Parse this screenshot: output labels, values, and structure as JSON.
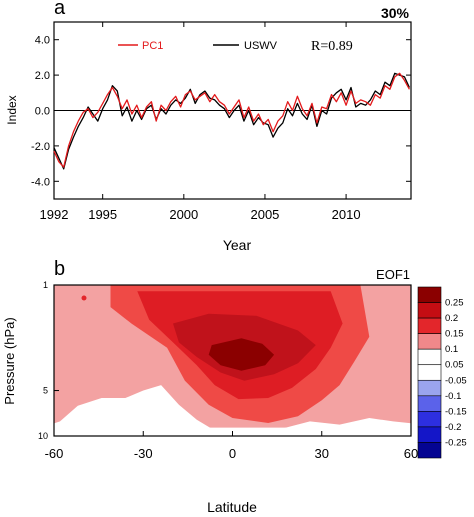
{
  "panel_a": {
    "label": "a",
    "percent": "30%",
    "legend_r": "R=0.89"
  },
  "panel_b": {
    "label": "b",
    "eof_label": "EOF1"
  },
  "chart_data": [
    {
      "type": "line",
      "xlabel": "Year",
      "ylabel": "Index",
      "xlim": [
        1992,
        2014
      ],
      "ylim": [
        -5,
        5
      ],
      "xticks": [
        1992,
        1995,
        2000,
        2005,
        2010
      ],
      "xtick_labels": [
        "1992",
        "1995",
        "2000",
        "2005",
        "2010"
      ],
      "yticks": [
        4,
        2,
        0,
        -2,
        -4
      ],
      "ytick_labels": [
        "4.0",
        "2.0",
        "0.0",
        "-2.0",
        "-4.0"
      ],
      "reference_line_y": 0,
      "legend_placement": "top-center",
      "series": [
        {
          "name": "PC1",
          "color": "#e31a1c",
          "x": [
            1992.0,
            1992.3,
            1992.6,
            1992.9,
            1993.2,
            1993.5,
            1993.8,
            1994.1,
            1994.4,
            1994.7,
            1995.0,
            1995.3,
            1995.6,
            1995.9,
            1996.2,
            1996.5,
            1996.8,
            1997.1,
            1997.4,
            1997.7,
            1998.0,
            1998.3,
            1998.6,
            1998.9,
            1999.2,
            1999.5,
            1999.8,
            2000.1,
            2000.4,
            2000.7,
            2001.0,
            2001.3,
            2001.6,
            2001.9,
            2002.2,
            2002.5,
            2002.8,
            2003.1,
            2003.4,
            2003.7,
            2004.0,
            2004.3,
            2004.6,
            2004.9,
            2005.2,
            2005.5,
            2005.8,
            2006.1,
            2006.4,
            2006.7,
            2007.0,
            2007.3,
            2007.6,
            2007.9,
            2008.2,
            2008.5,
            2008.8,
            2009.1,
            2009.4,
            2009.7,
            2010.0,
            2010.3,
            2010.6,
            2010.9,
            2011.2,
            2011.5,
            2011.8,
            2012.1,
            2012.4,
            2012.7,
            2013.0,
            2013.3,
            2013.6,
            2013.9
          ],
          "values": [
            -2.3,
            -2.9,
            -3.2,
            -2.0,
            -1.2,
            -0.6,
            -0.1,
            0.1,
            -0.4,
            -0.1,
            0.4,
            0.9,
            1.3,
            0.8,
            0.1,
            0.6,
            -0.2,
            0.3,
            -0.4,
            0.2,
            0.5,
            -0.6,
            0.3,
            0.0,
            0.5,
            0.8,
            0.2,
            0.9,
            1.1,
            0.6,
            0.8,
            1.0,
            0.5,
            0.9,
            0.5,
            0.3,
            -0.2,
            0.2,
            0.6,
            -0.4,
            0.2,
            -0.6,
            -0.2,
            -0.8,
            -0.5,
            -1.2,
            -0.6,
            -0.3,
            0.5,
            0.0,
            0.8,
            0.1,
            -0.3,
            0.4,
            -0.7,
            0.2,
            0.1,
            0.9,
            0.5,
            1.0,
            0.3,
            1.1,
            0.4,
            0.6,
            0.5,
            0.3,
            0.9,
            0.7,
            1.4,
            1.2,
            1.9,
            2.1,
            1.7,
            1.2
          ]
        },
        {
          "name": "USWV",
          "color": "#000000",
          "x": [
            1992.0,
            1992.3,
            1992.6,
            1992.9,
            1993.2,
            1993.5,
            1993.8,
            1994.1,
            1994.4,
            1994.7,
            1995.0,
            1995.3,
            1995.6,
            1995.9,
            1996.2,
            1996.5,
            1996.8,
            1997.1,
            1997.4,
            1997.7,
            1998.0,
            1998.3,
            1998.6,
            1998.9,
            1999.2,
            1999.5,
            1999.8,
            2000.1,
            2000.4,
            2000.7,
            2001.0,
            2001.3,
            2001.6,
            2001.9,
            2002.2,
            2002.5,
            2002.8,
            2003.1,
            2003.4,
            2003.7,
            2004.0,
            2004.3,
            2004.6,
            2004.9,
            2005.2,
            2005.5,
            2005.8,
            2006.1,
            2006.4,
            2006.7,
            2007.0,
            2007.3,
            2007.6,
            2007.9,
            2008.2,
            2008.5,
            2008.8,
            2009.1,
            2009.4,
            2009.7,
            2010.0,
            2010.3,
            2010.6,
            2010.9,
            2011.2,
            2011.5,
            2011.8,
            2012.1,
            2012.4,
            2012.7,
            2013.0,
            2013.3,
            2013.6,
            2013.9
          ],
          "values": [
            -2.1,
            -2.7,
            -3.3,
            -2.2,
            -1.5,
            -0.9,
            -0.4,
            0.2,
            -0.2,
            -0.6,
            0.1,
            0.6,
            1.4,
            1.1,
            -0.3,
            0.2,
            -0.6,
            0.0,
            -0.5,
            0.1,
            0.3,
            -0.5,
            0.1,
            -0.2,
            0.3,
            0.6,
            0.4,
            0.7,
            1.2,
            0.4,
            0.9,
            1.1,
            0.7,
            0.6,
            0.3,
            0.1,
            -0.4,
            0.0,
            0.3,
            -0.6,
            0.0,
            -0.8,
            -0.4,
            -0.7,
            -0.8,
            -1.5,
            -1.0,
            -0.7,
            0.1,
            -0.3,
            0.4,
            -0.2,
            -0.5,
            0.3,
            -0.9,
            0.0,
            -0.2,
            0.7,
            1.0,
            1.2,
            0.6,
            1.3,
            0.2,
            0.4,
            0.3,
            0.6,
            1.1,
            0.9,
            1.6,
            1.4,
            2.1,
            2.0,
            1.9,
            1.3
          ]
        }
      ]
    },
    {
      "type": "heatmap",
      "xlabel": "Latitude",
      "ylabel": "Pressure (hPa)",
      "xlim": [
        -60,
        60
      ],
      "xticks": [
        -60,
        -30,
        0,
        30,
        60
      ],
      "xtick_labels": [
        "-60",
        "-30",
        "0",
        "30",
        "60"
      ],
      "y_scale": "log-pressure",
      "yticks": [
        1,
        5,
        10
      ],
      "ytick_labels": [
        "1",
        "5",
        "10"
      ],
      "colorbar": {
        "placement": "right",
        "levels": [
          0.25,
          0.2,
          0.15,
          0.1,
          0.05,
          -0.05,
          -0.1,
          -0.15,
          -0.2,
          -0.25
        ],
        "labels": [
          "0.25",
          "0.2",
          "0.15",
          "0.1",
          "0.05",
          "-0.05",
          "-0.1",
          "-0.15",
          "-0.2",
          "-0.25"
        ],
        "colors": [
          "#8b0000",
          "#c40d13",
          "#e3262b",
          "#f0888a",
          "#ffffff",
          "#ffffff",
          "#9aa4ee",
          "#5b62ea",
          "#2d2fe0",
          "#1416c8",
          "#040492"
        ]
      },
      "contours": [
        {
          "level": 0.1,
          "color": "#f3a2a2",
          "points": [
            [
              -62,
              1
            ],
            [
              62,
              1
            ],
            [
              62,
              8.8
            ],
            [
              -62,
              8.8
            ]
          ]
        },
        {
          "level": 0.15,
          "color": "#ef4a46",
          "points": [
            [
              -41,
              1
            ],
            [
              43,
              1
            ],
            [
              46,
              2.2
            ],
            [
              41,
              3.2
            ],
            [
              36,
              4.6
            ],
            [
              30,
              5.8
            ],
            [
              22,
              7.4
            ],
            [
              12,
              8.2
            ],
            [
              0,
              7.6
            ],
            [
              -8,
              6.2
            ],
            [
              -16,
              4.3
            ],
            [
              -22,
              2.6
            ],
            [
              -34,
              1.8
            ],
            [
              -41,
              1.4
            ]
          ]
        },
        {
          "level": 0.2,
          "color": "#de1d24",
          "points": [
            [
              -32,
              1.1
            ],
            [
              33,
              1.1
            ],
            [
              37,
              1.8
            ],
            [
              33,
              2.6
            ],
            [
              28,
              3.6
            ],
            [
              20,
              4.8
            ],
            [
              12,
              5.6
            ],
            [
              2,
              5.7
            ],
            [
              -6,
              4.6
            ],
            [
              -12,
              3.4
            ],
            [
              -20,
              2.4
            ],
            [
              -28,
              1.7
            ]
          ]
        },
        {
          "level": 0.25,
          "color": "#c0121b",
          "points": [
            [
              -20,
              1.8
            ],
            [
              -8,
              1.55
            ],
            [
              8,
              1.6
            ],
            [
              22,
              2.0
            ],
            [
              28,
              2.5
            ],
            [
              22,
              3.3
            ],
            [
              14,
              3.9
            ],
            [
              4,
              4.3
            ],
            [
              -4,
              3.8
            ],
            [
              -12,
              3.0
            ],
            [
              -18,
              2.4
            ]
          ]
        },
        {
          "level": 0.3,
          "color": "#8b0000",
          "points": [
            [
              -7,
              2.5
            ],
            [
              3,
              2.25
            ],
            [
              10,
              2.45
            ],
            [
              14,
              2.9
            ],
            [
              11,
              3.4
            ],
            [
              3,
              3.7
            ],
            [
              -4,
              3.4
            ],
            [
              -8,
              2.9
            ]
          ]
        }
      ],
      "below_threshold_region": {
        "color": "#ffffff",
        "points": [
          [
            -62,
            8.5
          ],
          [
            -58,
            8.0
          ],
          [
            -52,
            6.3
          ],
          [
            -44,
            5.6
          ],
          [
            -36,
            5.6
          ],
          [
            -30,
            5.0
          ],
          [
            -24,
            4.6
          ],
          [
            -18,
            6.2
          ],
          [
            -12,
            7.8
          ],
          [
            -6,
            9.2
          ],
          [
            4,
            9.5
          ],
          [
            16,
            9.0
          ],
          [
            26,
            8.0
          ],
          [
            36,
            8.4
          ],
          [
            46,
            7.6
          ],
          [
            54,
            8.0
          ],
          [
            62,
            8.3
          ],
          [
            62,
            10.6
          ],
          [
            -62,
            10.6
          ]
        ]
      },
      "background_level": 0.1
    }
  ]
}
